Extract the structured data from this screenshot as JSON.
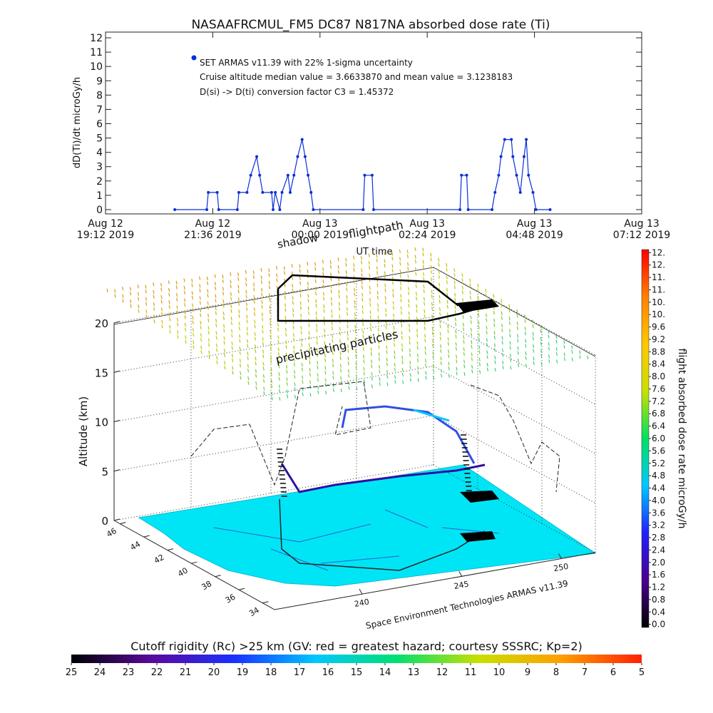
{
  "chart_data": [
    {
      "type": "line",
      "title": "NASAAFRCMUL_FM5 DC87 N817NA absorbed dose rate (Ti)",
      "ylabel": "dD(Ti)/dt microGy/h",
      "xlabel": "UT time",
      "annotations": [
        "Cruise altitude median value = 3.6633870 and mean value = 3.1238183",
        "D(si) -> D(ti) conversion factor C3 = 1.45372"
      ],
      "xlim": [
        "2019-08-12T19:12",
        "2019-08-13T07:12"
      ],
      "xticks": [
        {
          "value": "2019-08-12T19:12",
          "label": [
            "Aug 12",
            "19:12 2019"
          ]
        },
        {
          "value": "2019-08-12T21:36",
          "label": [
            "Aug 12",
            "21:36 2019"
          ]
        },
        {
          "value": "2019-08-13T00:00",
          "label": [
            "Aug 13",
            "00:00 2019"
          ]
        },
        {
          "value": "2019-08-13T02:24",
          "label": [
            "Aug 13",
            "02:24 2019"
          ]
        },
        {
          "value": "2019-08-13T04:48",
          "label": [
            "Aug 13",
            "04:48 2019"
          ]
        },
        {
          "value": "2019-08-13T07:12",
          "label": [
            "Aug 13",
            "07:12 2019"
          ]
        }
      ],
      "ylim": [
        -0.3,
        12.4
      ],
      "yticks": [
        0,
        1,
        2,
        3,
        4,
        5,
        6,
        7,
        8,
        9,
        10,
        11,
        12
      ],
      "series": [
        {
          "name": "SET ARMAS v11.39 with 22% 1-sigma uncertainty",
          "color": "#0a2fd8",
          "x": [
            "2019-08-12T20:45",
            "2019-08-12T21:28",
            "2019-08-12T21:30",
            "2019-08-12T21:42",
            "2019-08-12T21:44",
            "2019-08-12T22:09",
            "2019-08-12T22:11",
            "2019-08-12T22:22",
            "2019-08-12T22:27",
            "2019-08-12T22:35",
            "2019-08-12T22:39",
            "2019-08-12T22:43",
            "2019-08-12T22:55",
            "2019-08-12T22:57",
            "2019-08-12T23:00",
            "2019-08-12T23:06",
            "2019-08-12T23:09",
            "2019-08-12T23:17",
            "2019-08-12T23:20",
            "2019-08-12T23:25",
            "2019-08-12T23:30",
            "2019-08-12T23:36",
            "2019-08-12T23:40",
            "2019-08-12T23:44",
            "2019-08-12T23:48",
            "2019-08-12T23:51",
            "2019-08-13T00:58",
            "2019-08-13T01:00",
            "2019-08-13T01:10",
            "2019-08-13T01:12",
            "2019-08-13T03:08",
            "2019-08-13T03:10",
            "2019-08-13T03:17",
            "2019-08-13T03:19",
            "2019-08-13T03:51",
            "2019-08-13T03:55",
            "2019-08-13T04:00",
            "2019-08-13T04:03",
            "2019-08-13T04:08",
            "2019-08-13T04:17",
            "2019-08-13T04:19",
            "2019-08-13T04:24",
            "2019-08-13T04:29",
            "2019-08-13T04:34",
            "2019-08-13T04:37",
            "2019-08-13T04:40",
            "2019-08-13T04:46",
            "2019-08-13T04:50",
            "2019-08-13T05:09"
          ],
          "values": [
            0,
            0,
            1.2,
            1.2,
            0,
            0,
            1.2,
            1.2,
            2.4,
            3.7,
            2.4,
            1.2,
            1.2,
            0,
            1.2,
            0,
            1.2,
            2.4,
            1.2,
            2.4,
            3.7,
            4.9,
            3.7,
            2.4,
            1.2,
            0,
            0,
            2.4,
            2.4,
            0,
            0,
            2.4,
            2.4,
            0,
            0,
            1.2,
            2.4,
            3.7,
            4.9,
            4.9,
            3.7,
            2.4,
            1.2,
            3.7,
            4.9,
            2.4,
            1.2,
            0,
            0
          ]
        }
      ]
    },
    {
      "type": "surface3d",
      "zlabel": "Altitude (km)",
      "zlim": [
        0,
        20
      ],
      "zticks": [
        0,
        5,
        10,
        15,
        20
      ],
      "ylim": [
        46.5,
        33
      ],
      "yticks": [
        46,
        44,
        42,
        40,
        38,
        36,
        34
      ],
      "xlim": [
        235.6,
        251.7
      ],
      "xticks": [
        240,
        245,
        250
      ],
      "annotations": [
        "shadow",
        "flightpath",
        "precipitating particles",
        "Space Environment Technologies ARMAS v11.39"
      ]
    },
    {
      "type": "colorbar",
      "orientation": "vertical",
      "label": "flight absorbed dose rate microGy/h",
      "lim": [
        -0.1,
        12.1
      ],
      "ticks": [
        {
          "value": 0,
          "label": "0.0"
        },
        0.4,
        0.8,
        1.2,
        1.6,
        {
          "value": 2,
          "label": "2.0"
        },
        2.4,
        2.8,
        3.2,
        3.6,
        {
          "value": 4,
          "label": "4.0"
        },
        4.4,
        4.8,
        5.2,
        5.6,
        {
          "value": 6,
          "label": "6.0"
        },
        6.4,
        6.8,
        7.2,
        7.6,
        {
          "value": 8,
          "label": "8.0"
        },
        8.4,
        8.8,
        9.2,
        9.6,
        {
          "value": 10,
          "label": "10."
        },
        {
          "value": 10.4,
          "label": "10."
        },
        {
          "value": 10.8,
          "label": "11."
        },
        {
          "value": 11.2,
          "label": "11."
        },
        {
          "value": 11.6,
          "label": "12."
        },
        {
          "value": 12,
          "label": "12."
        }
      ],
      "colors": [
        "#000000",
        "#4b0090",
        "#2020ff",
        "#00c8ff",
        "#00e060",
        "#c8e000",
        "#ffc800",
        "#ff8000",
        "#ff0000"
      ]
    },
    {
      "type": "colorbar",
      "orientation": "horizontal",
      "label": "Cutoff rigidity (Rc) >25 km (GV: red = greatest hazard; courtesy SSSRC; Kp=2)",
      "lim": [
        25,
        5
      ],
      "ticks": [
        25,
        24,
        23,
        22,
        21,
        20,
        19,
        18,
        17,
        16,
        15,
        14,
        13,
        12,
        11,
        10,
        9,
        8,
        7,
        6,
        5
      ],
      "colors": [
        "#000000",
        "#5a0aa0",
        "#1a30ff",
        "#00c8ff",
        "#00e070",
        "#c8e000",
        "#ffa000",
        "#ff2000"
      ]
    }
  ]
}
